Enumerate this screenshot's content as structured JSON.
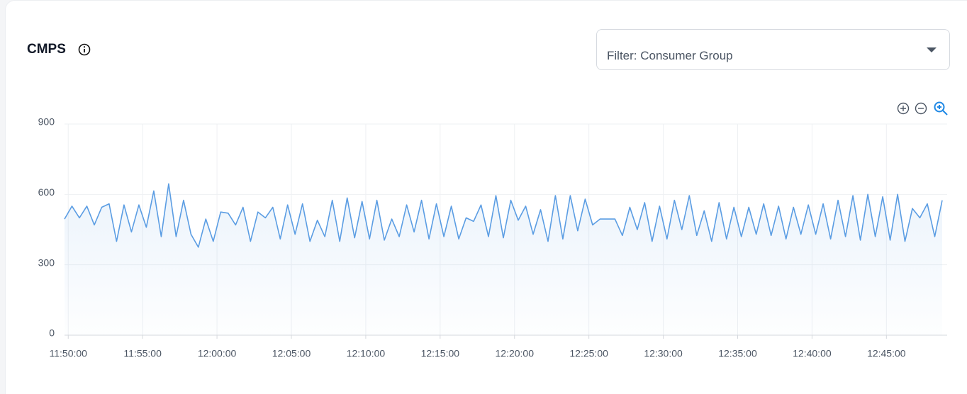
{
  "chart_data": {
    "type": "area-line",
    "title": "CMPS",
    "filter_label": "Filter: Consumer Group",
    "color": "#5b9de3",
    "grid": true,
    "ylim": [
      0,
      900
    ],
    "yticks": [
      0,
      300,
      600,
      900
    ],
    "xlim": [
      "11:49:45",
      "12:49:05"
    ],
    "xticks": [
      "11:50:00",
      "11:55:00",
      "12:00:00",
      "12:05:00",
      "12:10:00",
      "12:15:00",
      "12:20:00",
      "12:25:00",
      "12:30:00",
      "12:35:00",
      "12:40:00",
      "12:45:00"
    ],
    "x": [
      "11:49:45",
      "11:50:15",
      "11:50:45",
      "11:51:15",
      "11:51:45",
      "11:52:15",
      "11:52:45",
      "11:53:15",
      "11:53:45",
      "11:54:15",
      "11:54:45",
      "11:55:15",
      "11:55:45",
      "11:56:15",
      "11:56:45",
      "11:57:15",
      "11:57:45",
      "11:58:15",
      "11:58:45",
      "11:59:15",
      "11:59:45",
      "12:00:15",
      "12:00:45",
      "12:01:15",
      "12:01:45",
      "12:02:15",
      "12:02:45",
      "12:03:15",
      "12:03:45",
      "12:04:15",
      "12:04:45",
      "12:05:15",
      "12:05:45",
      "12:06:15",
      "12:06:45",
      "12:07:15",
      "12:07:45",
      "12:08:15",
      "12:08:45",
      "12:09:15",
      "12:09:45",
      "12:10:15",
      "12:10:45",
      "12:11:15",
      "12:11:45",
      "12:12:15",
      "12:12:45",
      "12:13:15",
      "12:13:45",
      "12:14:15",
      "12:14:45",
      "12:15:15",
      "12:15:45",
      "12:16:15",
      "12:16:45",
      "12:17:15",
      "12:17:45",
      "12:18:15",
      "12:18:45",
      "12:19:15",
      "12:19:45",
      "12:20:15",
      "12:20:45",
      "12:21:15",
      "12:21:45",
      "12:22:15",
      "12:22:45",
      "12:23:15",
      "12:23:45",
      "12:24:15",
      "12:24:45",
      "12:25:15",
      "12:25:45",
      "12:26:15",
      "12:26:45",
      "12:27:15",
      "12:27:45",
      "12:28:15",
      "12:28:45",
      "12:29:15",
      "12:29:45",
      "12:30:15",
      "12:30:45",
      "12:31:15",
      "12:31:45",
      "12:32:15",
      "12:32:45",
      "12:33:15",
      "12:33:45",
      "12:34:15",
      "12:34:45",
      "12:35:15",
      "12:35:45",
      "12:36:15",
      "12:36:45",
      "12:37:15",
      "12:37:45",
      "12:38:15",
      "12:38:45",
      "12:39:15",
      "12:39:45",
      "12:40:15",
      "12:40:45",
      "12:41:15",
      "12:41:45",
      "12:42:15",
      "12:42:45",
      "12:43:15",
      "12:43:45",
      "12:44:15",
      "12:44:45",
      "12:45:15",
      "12:45:45",
      "12:46:15",
      "12:46:45",
      "12:47:15",
      "12:47:45",
      "12:48:15",
      "12:48:45"
    ],
    "values": [
      495,
      550,
      500,
      550,
      470,
      545,
      560,
      400,
      555,
      440,
      555,
      460,
      615,
      420,
      645,
      420,
      575,
      430,
      375,
      495,
      400,
      525,
      520,
      470,
      545,
      400,
      525,
      500,
      545,
      410,
      555,
      430,
      560,
      400,
      490,
      420,
      575,
      400,
      585,
      415,
      570,
      410,
      575,
      405,
      495,
      420,
      555,
      440,
      575,
      410,
      560,
      420,
      550,
      410,
      500,
      485,
      555,
      420,
      595,
      415,
      575,
      490,
      550,
      430,
      535,
      400,
      595,
      410,
      595,
      445,
      580,
      470,
      495,
      495,
      495,
      425,
      545,
      450,
      565,
      400,
      550,
      410,
      575,
      450,
      595,
      425,
      530,
      400,
      565,
      410,
      545,
      420,
      545,
      430,
      560,
      425,
      550,
      410,
      545,
      430,
      555,
      430,
      560,
      410,
      575,
      420,
      595,
      405,
      600,
      420,
      590,
      405,
      600,
      400,
      540,
      500,
      560,
      420,
      575
    ]
  }
}
